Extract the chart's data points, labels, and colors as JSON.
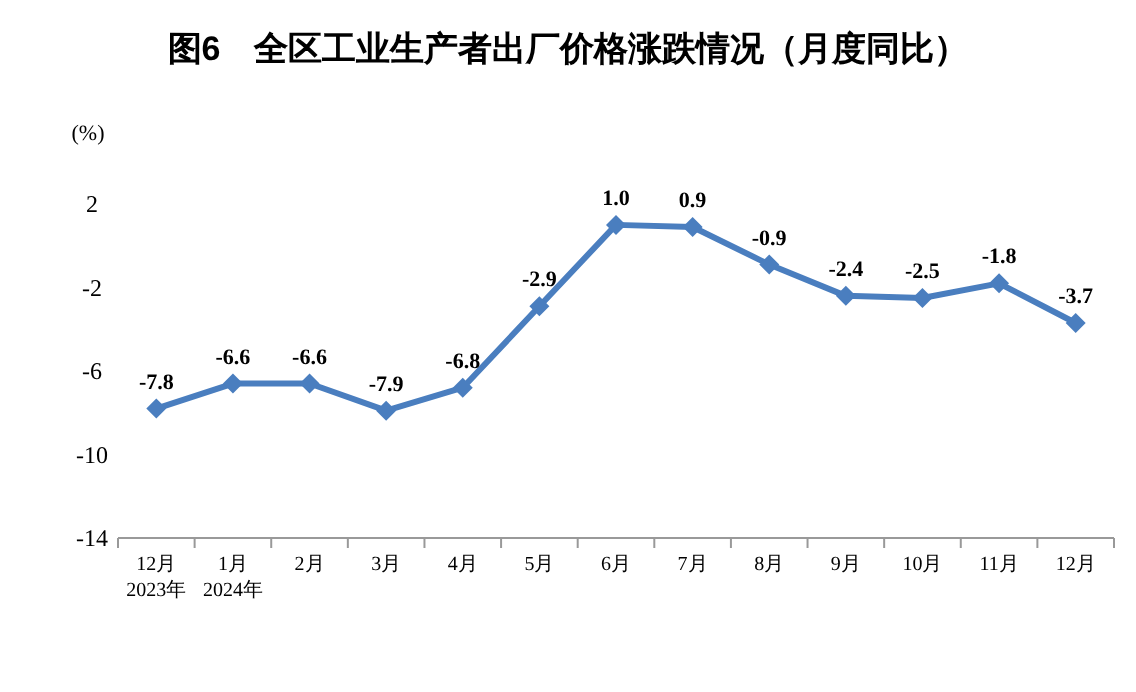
{
  "chart_data": {
    "type": "line",
    "title": "图6　全区工业生产者出厂价格涨跌情况（月度同比）",
    "ylabel": "(%)",
    "categories": [
      "12月\n2023年",
      "1月\n2024年",
      "2月",
      "3月",
      "4月",
      "5月",
      "6月",
      "7月",
      "8月",
      "9月",
      "10月",
      "11月",
      "12月"
    ],
    "series": [
      {
        "color": "#4a7ebf",
        "values": [
          -7.8,
          -6.6,
          -6.6,
          -7.9,
          -6.8,
          -2.9,
          1.0,
          0.9,
          -0.9,
          -2.4,
          -2.5,
          -1.8,
          -3.7
        ],
        "value_labels": [
          "-7.8",
          "-6.6",
          "-6.6",
          "-7.9",
          "-6.8",
          "-2.9",
          "1.0",
          "0.9",
          "-0.9",
          "-2.4",
          "-2.5",
          "-1.8",
          "-3.7"
        ]
      }
    ],
    "ylim": [
      -14,
      2
    ],
    "yticks": [
      2,
      -2,
      -6,
      -10,
      -14
    ],
    "marker": "diamond"
  }
}
